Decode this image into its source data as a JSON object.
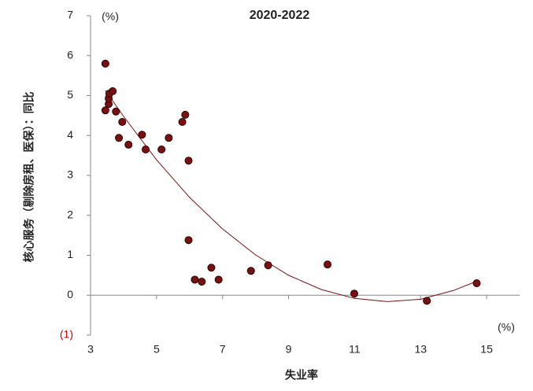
{
  "chart_data": {
    "type": "scatter",
    "title": "2020-2022",
    "x_label": "失业率",
    "y_label": "核心服务（剔除房租、医保）：同比",
    "x_unit": "(%)",
    "y_unit": "(%)",
    "xlim": [
      3,
      16
    ],
    "ylim": [
      -1,
      7
    ],
    "xticks": [
      3,
      5,
      7,
      9,
      11,
      13,
      15
    ],
    "yticks": [
      {
        "value": -1,
        "label": "(1)"
      },
      0,
      1,
      2,
      3,
      4,
      5,
      6,
      7
    ],
    "negative_tick_color": "#cc0000",
    "series": [
      {
        "color": "#7a1010",
        "x": [
          3.45,
          3.45,
          3.55,
          3.55,
          3.57,
          3.67,
          3.77,
          3.96,
          3.86,
          4.15,
          4.56,
          4.67,
          5.15,
          5.37,
          5.78,
          5.87,
          5.97,
          5.97,
          6.16,
          6.37,
          6.66,
          6.88,
          7.86,
          8.38,
          10.18,
          10.99,
          13.19,
          14.7
        ],
        "values": [
          5.8,
          4.63,
          4.79,
          4.93,
          5.05,
          5.11,
          4.6,
          4.34,
          3.94,
          3.77,
          4.02,
          3.65,
          3.65,
          3.94,
          4.34,
          4.52,
          3.37,
          1.38,
          0.39,
          0.34,
          0.69,
          0.39,
          0.61,
          0.75,
          0.77,
          0.04,
          -0.14,
          0.3
        ]
      }
    ],
    "trendline": {
      "color": "#7a1010",
      "x": [
        3.45,
        4,
        5,
        6,
        7,
        8,
        9,
        10,
        11,
        12,
        13,
        14,
        14.7
      ],
      "values": [
        5.13,
        4.48,
        3.39,
        2.45,
        1.66,
        1.01,
        0.5,
        0.14,
        -0.08,
        -0.16,
        -0.1,
        0.12,
        0.35
      ]
    }
  }
}
